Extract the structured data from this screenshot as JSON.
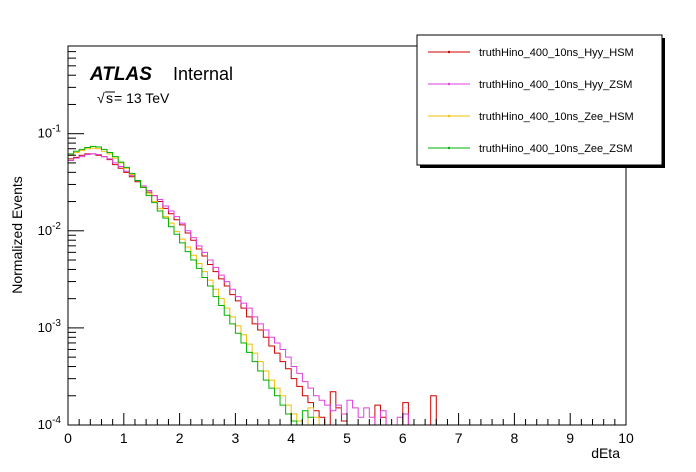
{
  "chart_data": {
    "type": "line",
    "style": "step-histogram",
    "ylabel": "Normalized Events",
    "xlabel": "dEta",
    "xlim": [
      0,
      10
    ],
    "ylim": [
      0.0001,
      0.8
    ],
    "yscale": "log",
    "grid": false,
    "legend_position": "top-right",
    "x_ticks": [
      "0",
      "1",
      "2",
      "3",
      "4",
      "5",
      "6",
      "7",
      "8",
      "9",
      "10"
    ],
    "y_ticks": [
      {
        "value": 0.0001,
        "base": "10",
        "exp": "-4"
      },
      {
        "value": 0.001,
        "base": "10",
        "exp": "-3"
      },
      {
        "value": 0.01,
        "base": "10",
        "exp": "-2"
      },
      {
        "value": 0.1,
        "base": "10",
        "exp": "-1"
      }
    ],
    "annotations": {
      "atlas": "ATLAS",
      "internal": "Internal",
      "energy_sqrt": "√",
      "energy_s": "s",
      "energy_rest": " = 13 TeV"
    },
    "bin_width": 0.1,
    "series": [
      {
        "name": "truthHino_400_10ns_Hyy_HSM",
        "color": "#cc0000",
        "values": [
          0.055,
          0.057,
          0.06,
          0.062,
          0.062,
          0.06,
          0.058,
          0.054,
          0.048,
          0.044,
          0.04,
          0.036,
          0.032,
          0.028,
          0.025,
          0.023,
          0.02,
          0.017,
          0.015,
          0.013,
          0.0115,
          0.0095,
          0.008,
          0.0065,
          0.0055,
          0.0045,
          0.0038,
          0.0032,
          0.0027,
          0.0022,
          0.0019,
          0.0016,
          0.0013,
          0.0011,
          0.00095,
          0.0008,
          0.00065,
          0.00055,
          0.00045,
          0.00038,
          0.0003,
          0.00025,
          0.0002,
          0.00017,
          0.00014,
          0.00012,
          0.0001,
          0.00022,
          0.00015,
          0.00011,
          0.0001,
          0.0001,
          0.0001,
          0.0001,
          0.0001,
          0.00016,
          0.00012,
          0.0001,
          0.0001,
          0.0001,
          0.00017,
          0.0001,
          0.0001,
          0.0001,
          0.0001,
          0.0002,
          0.0001,
          0.0001,
          0.0001,
          0.0001,
          0.0001,
          0.0001,
          0.0001,
          0.0001,
          0.0001,
          0.0001,
          0.0001,
          0.0001,
          0.0001,
          0.0001,
          0.0001,
          0.0001,
          0.0001,
          0.0001,
          0.0001,
          0.0001,
          0.0001,
          0.0001,
          0.0001,
          0.0001,
          0.0001,
          0.0001,
          0.0001,
          0.0001,
          0.0001,
          0.0001,
          0.0001,
          0.0001,
          0.0001,
          0.0001
        ]
      },
      {
        "name": "truthHino_400_10ns_Hyy_ZSM",
        "color": "#e040e0",
        "values": [
          0.053,
          0.056,
          0.058,
          0.061,
          0.062,
          0.061,
          0.058,
          0.055,
          0.05,
          0.046,
          0.041,
          0.037,
          0.033,
          0.029,
          0.026,
          0.023,
          0.021,
          0.018,
          0.016,
          0.014,
          0.012,
          0.01,
          0.0085,
          0.007,
          0.006,
          0.005,
          0.0042,
          0.0035,
          0.003,
          0.0025,
          0.0021,
          0.0018,
          0.0016,
          0.0013,
          0.0011,
          0.00095,
          0.0008,
          0.0007,
          0.0006,
          0.0005,
          0.0004,
          0.00034,
          0.00028,
          0.00024,
          0.0002,
          0.00018,
          0.00016,
          0.00014,
          0.00016,
          0.00013,
          0.00018,
          0.00015,
          0.00012,
          0.00015,
          0.00012,
          0.0001,
          0.00014,
          0.0001,
          0.0001,
          0.00012,
          0.00013,
          0.0001,
          0.0001,
          0.0001,
          0.0001,
          0.0001,
          0.0001,
          0.0001,
          0.0001,
          0.0001,
          0.0001,
          0.0001,
          0.0001,
          0.0001,
          0.0001,
          0.0001,
          0.0001,
          0.0001,
          0.0001,
          0.0001,
          0.0001,
          0.0001,
          0.0001,
          0.0001,
          0.0001,
          0.0001,
          0.0001,
          0.0001,
          0.0001,
          0.0001,
          0.0001,
          0.0001,
          0.0001,
          0.0001,
          0.0001,
          0.0001,
          0.0001,
          0.0001,
          0.0001,
          0.0001
        ]
      },
      {
        "name": "truthHino_400_10ns_Zee_HSM",
        "color": "#f0c000",
        "values": [
          0.06,
          0.064,
          0.067,
          0.07,
          0.071,
          0.07,
          0.066,
          0.062,
          0.056,
          0.05,
          0.044,
          0.038,
          0.033,
          0.028,
          0.024,
          0.02,
          0.017,
          0.014,
          0.012,
          0.0098,
          0.0082,
          0.0068,
          0.0056,
          0.0046,
          0.0038,
          0.0031,
          0.0025,
          0.002,
          0.0016,
          0.0013,
          0.00105,
          0.00085,
          0.00068,
          0.00055,
          0.00045,
          0.00036,
          0.00029,
          0.00024,
          0.0002,
          0.00016,
          0.00013,
          0.00011,
          0.0001,
          0.00015,
          0.00012,
          0.0001,
          0.0001,
          0.0001,
          0.0001,
          0.0001,
          0.0001,
          0.0001,
          0.0001,
          0.0001,
          0.0001,
          0.0001,
          0.0001,
          0.0001,
          0.0001,
          0.0001,
          0.0001,
          0.0001,
          0.0001,
          0.0001,
          0.0001,
          0.0001,
          0.0001,
          0.0001,
          0.0001,
          0.0001,
          0.0001,
          0.0001,
          0.0001,
          0.0001,
          0.0001,
          0.0001,
          0.0001,
          0.0001,
          0.0001,
          0.0001,
          0.0001,
          0.0001,
          0.0001,
          0.0001,
          0.0001,
          0.0001,
          0.0001,
          0.0001,
          0.0001,
          0.0001,
          0.0001,
          0.0001,
          0.0001,
          0.0001,
          0.0001,
          0.0001,
          0.0001,
          0.0001,
          0.0001,
          0.0001
        ]
      },
      {
        "name": "truthHino_400_10ns_Zee_ZSM",
        "color": "#00b000",
        "values": [
          0.062,
          0.066,
          0.069,
          0.072,
          0.074,
          0.073,
          0.069,
          0.064,
          0.058,
          0.051,
          0.045,
          0.039,
          0.033,
          0.028,
          0.023,
          0.0195,
          0.016,
          0.0135,
          0.011,
          0.0092,
          0.0075,
          0.0061,
          0.005,
          0.0041,
          0.0033,
          0.0027,
          0.0021,
          0.0017,
          0.00135,
          0.0011,
          0.00088,
          0.0007,
          0.00056,
          0.00045,
          0.00036,
          0.00029,
          0.00024,
          0.0002,
          0.00016,
          0.00013,
          0.00011,
          0.0001,
          0.00014,
          0.00012,
          0.0001,
          0.0001,
          0.0001,
          0.0001,
          0.0001,
          0.0001,
          0.0001,
          0.0001,
          0.0001,
          0.0001,
          0.0001,
          0.0001,
          0.0001,
          0.0001,
          0.0001,
          0.0001,
          0.0001,
          0.0001,
          0.0001,
          0.0001,
          0.0001,
          0.0001,
          0.0001,
          0.0001,
          0.0001,
          0.0001,
          0.0001,
          0.0001,
          0.0001,
          0.0001,
          0.0001,
          0.0001,
          0.0001,
          0.0001,
          0.0001,
          0.0001,
          0.0001,
          0.0001,
          0.0001,
          0.0001,
          0.0001,
          0.0001,
          0.0001,
          0.0001,
          0.0001,
          0.0001,
          0.0001,
          0.0001,
          0.0001,
          0.0001,
          0.0001,
          0.0001,
          0.0001,
          0.0001,
          0.0001,
          0.0001
        ]
      }
    ]
  }
}
